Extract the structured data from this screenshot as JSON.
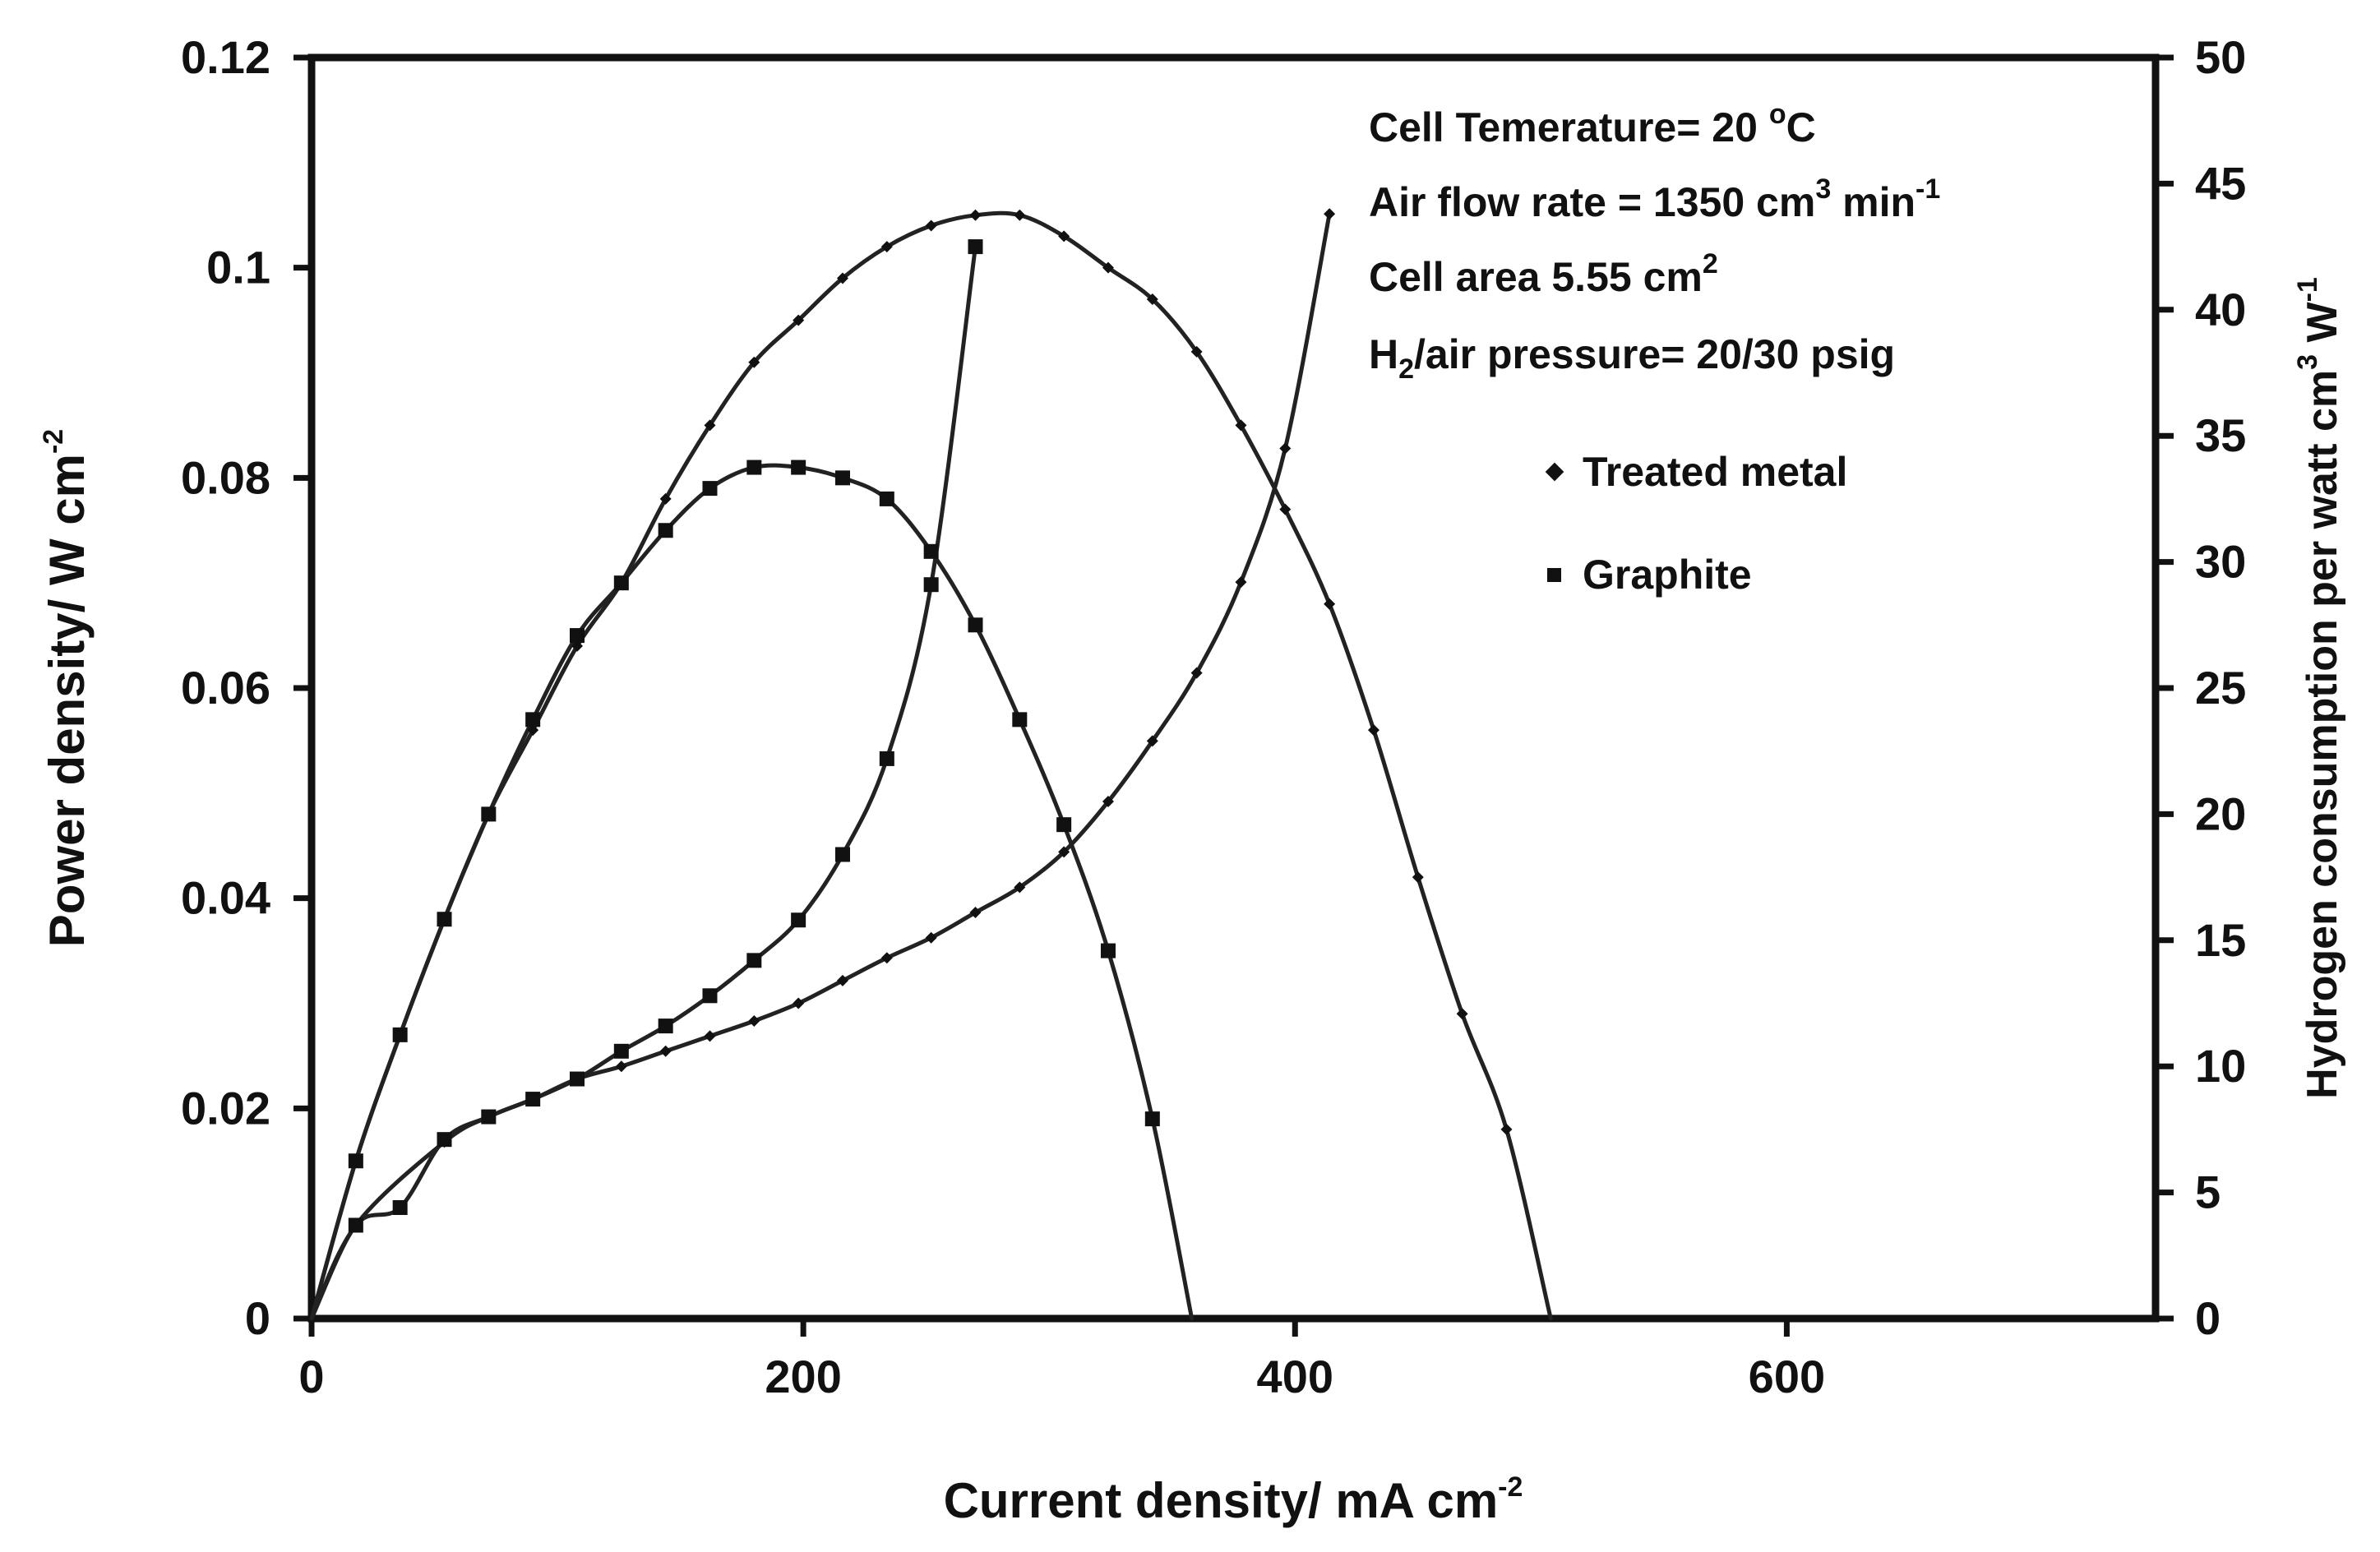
{
  "chart_data": {
    "type": "scatter",
    "title": "",
    "xlabel": "Current density/ mA cm",
    "xlabel_sup": "-2",
    "ylabel_left": "Power density/ W cm",
    "ylabel_left_sup": "-2",
    "ylabel_right_part1": "Hydrogen consumption per watt cm",
    "ylabel_right_sup1": "3",
    "ylabel_right_part2": " W",
    "ylabel_right_sup2": "-1",
    "xlim": [
      0,
      750
    ],
    "ylim_left": [
      0,
      0.12
    ],
    "ylim_right": [
      0,
      50
    ],
    "x_ticks": [
      0,
      200,
      400,
      600
    ],
    "x_tick_labels": [
      "0",
      "200",
      "400",
      "600"
    ],
    "y_left_ticks": [
      0,
      0.02,
      0.04,
      0.06,
      0.08,
      0.1,
      0.12
    ],
    "y_left_tick_labels": [
      "0",
      "0.02",
      "0.04",
      "0.06",
      "0.08",
      "0.1",
      "0.12"
    ],
    "y_right_ticks": [
      0,
      5,
      10,
      15,
      20,
      25,
      30,
      35,
      40,
      45,
      50
    ],
    "y_right_tick_labels": [
      "0",
      "5",
      "10",
      "15",
      "20",
      "25",
      "30",
      "35",
      "40",
      "45",
      "50"
    ],
    "grid": false,
    "annotations": {
      "temperature": "Cell Temerature= 20 ",
      "temperature_sup": "o",
      "temperature_unit": "C",
      "airflow": "Air flow rate = 1350 cm",
      "airflow_sup": "3",
      "airflow_unit": " min",
      "airflow_sup2": "-1",
      "area": "Cell area 5.55 cm",
      "area_sup": "2",
      "pressure_h": "H",
      "pressure_sub": "2",
      "pressure_rest": "/air pressure= 20/30 psig"
    },
    "legend": {
      "position": "right",
      "entries": [
        {
          "name": "Treated metal",
          "marker": "diamond"
        },
        {
          "name": "Graphite",
          "marker": "square"
        }
      ]
    },
    "series": [
      {
        "name": "Treated metal - Power density",
        "marker": "diamond",
        "axis": "left",
        "x": [
          0,
          18,
          36,
          54,
          72,
          90,
          108,
          126,
          144,
          162,
          180,
          198,
          216,
          234,
          252,
          270,
          288,
          306,
          324,
          342,
          360,
          378,
          396,
          414,
          432,
          450,
          468,
          486,
          504
        ],
        "y": [
          0,
          0.015,
          0.027,
          0.038,
          0.048,
          0.056,
          0.064,
          0.07,
          0.078,
          0.085,
          0.091,
          0.095,
          0.099,
          0.102,
          0.104,
          0.105,
          0.105,
          0.103,
          0.1,
          0.097,
          0.092,
          0.085,
          0.077,
          0.068,
          0.056,
          0.042,
          0.029,
          0.018,
          0
        ]
      },
      {
        "name": "Treated metal - Hydrogen consumption",
        "marker": "diamond",
        "axis": "right",
        "x": [
          18,
          54,
          72,
          90,
          108,
          126,
          144,
          162,
          180,
          198,
          216,
          234,
          252,
          270,
          288,
          306,
          324,
          342,
          360,
          378,
          396,
          414
        ],
        "y": [
          3.7,
          7.0,
          8.0,
          8.7,
          9.5,
          10.0,
          10.6,
          11.2,
          11.8,
          12.5,
          13.4,
          14.3,
          15.1,
          16.1,
          17.1,
          18.5,
          20.5,
          22.9,
          25.6,
          29.2,
          34.5,
          43.8
        ]
      },
      {
        "name": "Graphite - Power density",
        "marker": "square",
        "axis": "left",
        "x": [
          0,
          18,
          36,
          54,
          72,
          90,
          108,
          126,
          144,
          162,
          180,
          198,
          216,
          234,
          252,
          270,
          288,
          306,
          324,
          342,
          358
        ],
        "y": [
          0,
          0.015,
          0.027,
          0.038,
          0.048,
          0.057,
          0.065,
          0.07,
          0.075,
          0.079,
          0.081,
          0.081,
          0.08,
          0.078,
          0.073,
          0.066,
          0.057,
          0.047,
          0.035,
          0.019,
          0
        ]
      },
      {
        "name": "Graphite - Hydrogen consumption",
        "marker": "square",
        "axis": "right",
        "x": [
          18,
          36,
          54,
          72,
          90,
          108,
          126,
          144,
          162,
          180,
          198,
          216,
          234,
          252,
          270
        ],
        "y": [
          3.7,
          4.4,
          7.1,
          8.0,
          8.7,
          9.5,
          10.6,
          11.6,
          12.8,
          14.2,
          15.8,
          18.4,
          22.2,
          29.1,
          42.5
        ]
      }
    ]
  }
}
